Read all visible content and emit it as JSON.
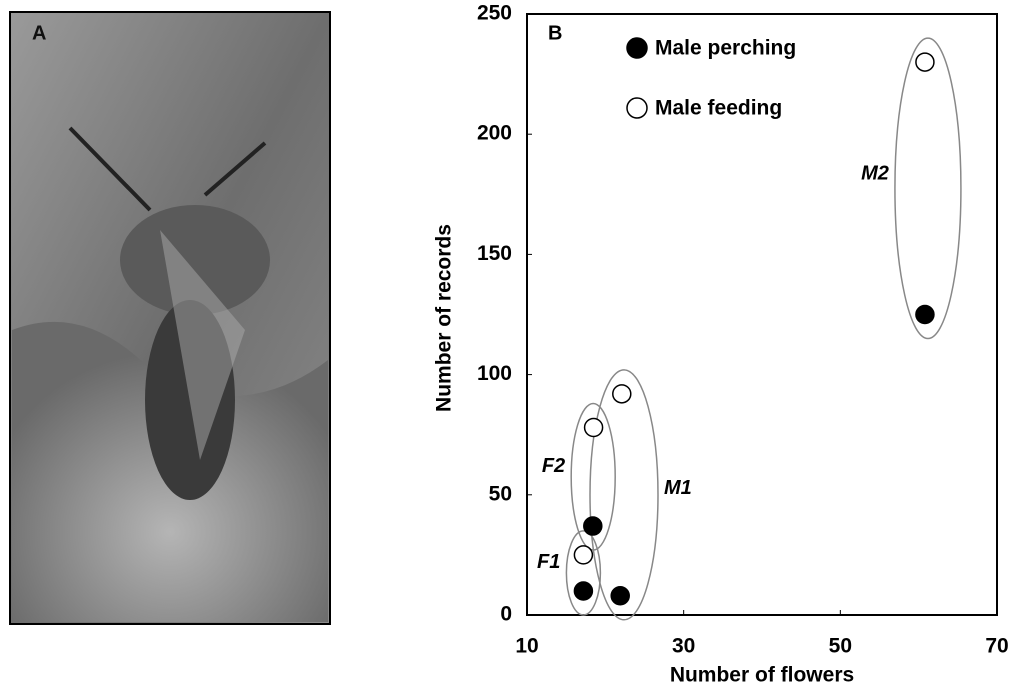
{
  "photo": {
    "label": "A"
  },
  "chart_data": {
    "type": "scatter",
    "panel_label": "B",
    "x_label": "Number of flowers",
    "y_label": "Number of records",
    "xlim": [
      10,
      70
    ],
    "xticks": [
      10,
      30,
      50,
      70
    ],
    "ylim": [
      0,
      250
    ],
    "yticks": [
      0,
      50,
      100,
      150,
      200,
      250
    ],
    "series": [
      {
        "name": "Male perching",
        "color": "#000000",
        "marker": "filled",
        "x": [
          17.2,
          21.9,
          18.4,
          60.8
        ],
        "values": [
          10,
          8,
          37,
          125
        ]
      },
      {
        "name": "Male feeding",
        "color": "#000000",
        "marker": "open",
        "x": [
          17.2,
          18.5,
          22.1,
          60.8
        ],
        "values": [
          25,
          78,
          92,
          230
        ]
      }
    ],
    "annotations": [
      "F1",
      "F2",
      "M1",
      "M2"
    ],
    "legend": "upper-left"
  }
}
